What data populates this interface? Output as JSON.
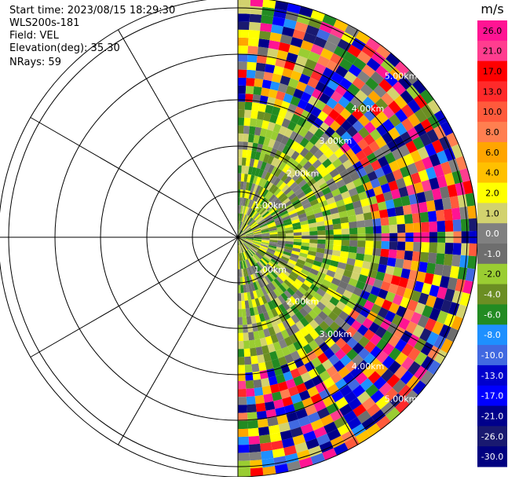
{
  "info": {
    "start_time": "Start time: 2023/08/15 18:29:30",
    "instrument": "WLS200s-181",
    "field": "Field: VEL",
    "elevation": "Elevation(deg): 35.30",
    "nrays": "NRays: 59"
  },
  "chart_data": {
    "type": "heatmap",
    "projection": "polar PPI scan (right half-disc)",
    "azimuth_range_deg": [
      0,
      180
    ],
    "range_rings_km": [
      "1.00km",
      "2.00km",
      "3.00km",
      "4.00km",
      "5.00km"
    ],
    "colorbar": {
      "unit": "m/s",
      "ticks": [
        "26.0",
        "21.0",
        "17.0",
        "13.0",
        "10.0",
        "8.0",
        "6.0",
        "4.0",
        "2.0",
        "1.0",
        "0.0",
        "-1.0",
        "-2.0",
        "-4.0",
        "-6.0",
        "-8.0",
        "-10.0",
        "-13.0",
        "-17.0",
        "-21.0",
        "-26.0",
        "-30.0"
      ],
      "colors": [
        "#ff1493",
        "#ff3d8f",
        "#ff0000",
        "#ff2a2a",
        "#ff5a3c",
        "#ff7f50",
        "#ffa500",
        "#ffc000",
        "#ffff00",
        "#d2d26e",
        "#808080",
        "#6e6e6e",
        "#9acd32",
        "#6b8e23",
        "#228b22",
        "#1e90ff",
        "#4169e1",
        "#0000cd",
        "#0000ff",
        "#00008b",
        "#191970",
        "#000080"
      ]
    }
  }
}
